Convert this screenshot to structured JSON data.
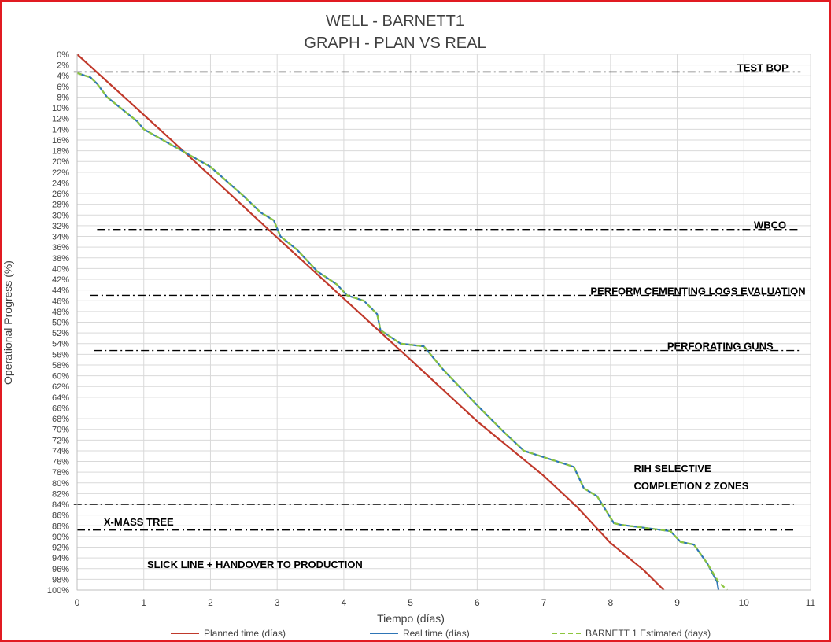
{
  "chart_data": {
    "type": "line",
    "title": "WELL -  BARNETT1",
    "subtitle": "GRAPH  - PLAN VS REAL",
    "xlabel": "Tiempo (días)",
    "ylabel": "Operational Progress (%)",
    "xlim": [
      0,
      11
    ],
    "ylim": [
      0,
      100
    ],
    "y_inverted": true,
    "x_ticks": [
      0,
      1,
      2,
      3,
      4,
      5,
      6,
      7,
      8,
      9,
      10,
      11
    ],
    "y_ticks": [
      0,
      2,
      4,
      6,
      8,
      10,
      12,
      14,
      16,
      18,
      20,
      22,
      24,
      26,
      28,
      30,
      32,
      34,
      36,
      38,
      40,
      42,
      44,
      46,
      48,
      50,
      52,
      54,
      56,
      58,
      60,
      62,
      64,
      66,
      68,
      70,
      72,
      74,
      76,
      78,
      80,
      82,
      84,
      86,
      88,
      90,
      92,
      94,
      96,
      98,
      100
    ],
    "y_tick_suffix": "%",
    "grid": true,
    "legend_position": "bottom",
    "series": [
      {
        "name": "Planned time (días)",
        "color": "#c0392b",
        "style": "solid",
        "points": [
          [
            0,
            0
          ],
          [
            1,
            11.3
          ],
          [
            2,
            22.7
          ],
          [
            3,
            34.2
          ],
          [
            4,
            45.6
          ],
          [
            5,
            57.0
          ],
          [
            6,
            68.5
          ],
          [
            7,
            78.7
          ],
          [
            7.5,
            84.5
          ],
          [
            8,
            91.2
          ],
          [
            8.5,
            96.3
          ],
          [
            8.8,
            100
          ]
        ]
      },
      {
        "name": "Real time (días)",
        "color": "#2e75b6",
        "style": "solid",
        "points": [
          [
            0,
            3.5
          ],
          [
            0.2,
            4.3
          ],
          [
            0.3,
            5.5
          ],
          [
            0.45,
            8.0
          ],
          [
            0.9,
            12.5
          ],
          [
            1.0,
            14.0
          ],
          [
            1.5,
            17.5
          ],
          [
            2.0,
            21.0
          ],
          [
            2.5,
            26.5
          ],
          [
            2.75,
            29.5
          ],
          [
            2.95,
            31.0
          ],
          [
            3.05,
            34.0
          ],
          [
            3.3,
            36.5
          ],
          [
            3.6,
            40.5
          ],
          [
            3.9,
            43.0
          ],
          [
            4.05,
            45.0
          ],
          [
            4.3,
            46.0
          ],
          [
            4.5,
            48.5
          ],
          [
            4.55,
            51.5
          ],
          [
            4.85,
            54.0
          ],
          [
            5.2,
            54.5
          ],
          [
            5.5,
            59.0
          ],
          [
            6.0,
            65.5
          ],
          [
            6.4,
            70.5
          ],
          [
            6.7,
            74.0
          ],
          [
            7.45,
            77.0
          ],
          [
            7.6,
            81.0
          ],
          [
            7.8,
            82.5
          ],
          [
            8.05,
            87.5
          ],
          [
            8.15,
            87.8
          ],
          [
            8.9,
            89.0
          ],
          [
            9.05,
            91.0
          ],
          [
            9.25,
            91.5
          ],
          [
            9.45,
            95.0
          ],
          [
            9.6,
            98.5
          ],
          [
            9.62,
            100
          ]
        ]
      },
      {
        "name": "BARNETT 1 Estimated (days)",
        "color": "#8dc63f",
        "style": "dashed",
        "points": [
          [
            0,
            3.5
          ],
          [
            0.2,
            4.3
          ],
          [
            0.3,
            5.5
          ],
          [
            0.45,
            8.0
          ],
          [
            0.9,
            12.5
          ],
          [
            1.0,
            14.0
          ],
          [
            1.5,
            17.5
          ],
          [
            2.0,
            21.0
          ],
          [
            2.5,
            26.5
          ],
          [
            2.75,
            29.5
          ],
          [
            2.95,
            31.0
          ],
          [
            3.05,
            34.0
          ],
          [
            3.3,
            36.5
          ],
          [
            3.6,
            40.5
          ],
          [
            3.9,
            43.0
          ],
          [
            4.05,
            45.0
          ],
          [
            4.3,
            46.0
          ],
          [
            4.5,
            48.5
          ],
          [
            4.55,
            51.5
          ],
          [
            4.85,
            54.0
          ],
          [
            5.2,
            54.5
          ],
          [
            5.5,
            59.0
          ],
          [
            6.0,
            65.5
          ],
          [
            6.4,
            70.5
          ],
          [
            6.7,
            74.0
          ],
          [
            7.45,
            77.0
          ],
          [
            7.6,
            81.0
          ],
          [
            7.8,
            82.5
          ],
          [
            8.05,
            87.5
          ],
          [
            8.15,
            87.8
          ],
          [
            8.9,
            89.0
          ],
          [
            9.05,
            91.0
          ],
          [
            9.25,
            91.5
          ],
          [
            9.45,
            95.0
          ],
          [
            9.62,
            98.5
          ],
          [
            9.75,
            100
          ]
        ]
      }
    ],
    "phase_lines": [
      {
        "label": "TEST BOP",
        "y": 3.3,
        "x_from": -0.05,
        "x_to": 10.85,
        "label_x": 9.9,
        "label_side": "on"
      },
      {
        "label": "WBCO",
        "y": 32.7,
        "x_from": 0.3,
        "x_to": 10.85,
        "label_x": 10.15,
        "label_side": "on"
      },
      {
        "label": "PERFORM CEMENTING LOGS EVALUATION",
        "y": 45.0,
        "x_from": 0.2,
        "x_to": 10.85,
        "label_x": 7.7,
        "label_side": "on"
      },
      {
        "label": "PERFORATING GUNS",
        "y": 55.3,
        "x_from": 0.25,
        "x_to": 10.85,
        "label_x": 8.85,
        "label_side": "on"
      },
      {
        "label": "",
        "y": 84.0,
        "x_from": -0.05,
        "x_to": 10.75,
        "label_x": null,
        "label_side": "none"
      },
      {
        "label": "",
        "y": 88.8,
        "x_from": 0.0,
        "x_to": 10.75,
        "label_x": null,
        "label_side": "none"
      }
    ],
    "annotations": [
      {
        "text": "RIH SELECTIVE",
        "x": 8.35,
        "y": 77.5
      },
      {
        "text": "COMPLETION 2 ZONES",
        "x": 8.35,
        "y": 80.8
      },
      {
        "text": "X-MASS TREE",
        "x": 0.4,
        "y": 87.5
      },
      {
        "text": "SLICK LINE + HANDOVER TO PRODUCTION",
        "x": 1.05,
        "y": 95.5
      }
    ]
  }
}
